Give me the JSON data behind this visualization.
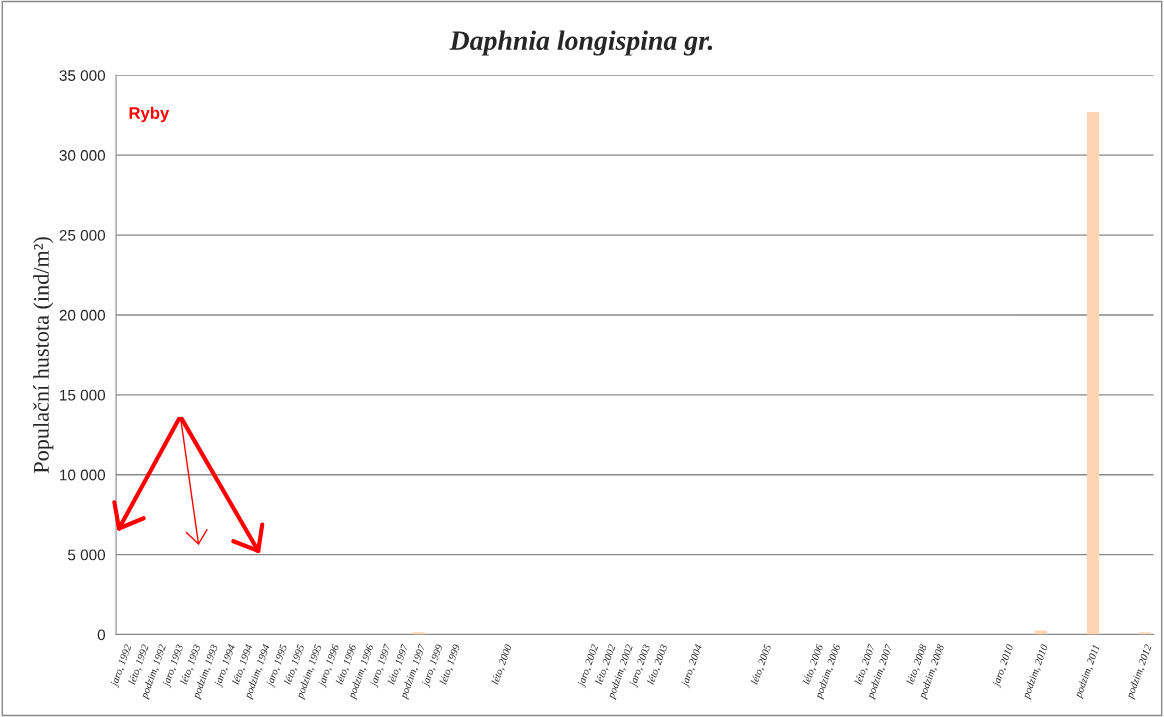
{
  "chart_data": {
    "type": "bar",
    "title": "Daphnia longispina gr.",
    "ylabel": "Populační hustota (ind/m²)",
    "categories": [
      "jaro, 1992",
      "léto, 1992",
      "podzim, 1992",
      "jaro, 1993",
      "léto, 1993",
      "podzim, 1993",
      "jaro, 1994",
      "léto, 1994",
      "podzim, 1994",
      "jaro, 1995",
      "léto, 1995",
      "podzim, 1995",
      "jaro, 1996",
      "léto, 1996",
      "podzim, 1996",
      "jaro, 1997",
      "léto, 1997",
      "podzim, 1997",
      "jaro, 1999",
      "léto, 1999",
      null,
      null,
      "léto, 2000",
      null,
      null,
      null,
      null,
      "jaro, 2002",
      "léto, 2002",
      "podzim, 2002",
      "jaro, 2003",
      "léto, 2003",
      null,
      "jaro, 2004",
      null,
      null,
      null,
      "léto, 2005",
      null,
      null,
      "léto, 2006",
      "podzim, 2006",
      null,
      "léto, 2007",
      "podzim, 2007",
      null,
      "léto, 2008",
      "podzim, 2008",
      null,
      null,
      null,
      "jaro, 2010",
      null,
      "podzim, 2010",
      null,
      null,
      "podzim, 2011",
      null,
      null,
      "podzim, 2012"
    ],
    "values": [
      0,
      0,
      0,
      0,
      0,
      0,
      0,
      0,
      0,
      0,
      0,
      0,
      0,
      0,
      0,
      0,
      0,
      150,
      0,
      0,
      0,
      0,
      0,
      0,
      0,
      0,
      0,
      0,
      0,
      0,
      0,
      0,
      0,
      0,
      0,
      0,
      0,
      0,
      0,
      0,
      0,
      0,
      0,
      0,
      0,
      0,
      0,
      0,
      0,
      0,
      0,
      0,
      0,
      250,
      0,
      0,
      32700,
      0,
      0,
      150
    ],
    "color": "#fcd5b5",
    "ylim": [
      0,
      35000
    ],
    "yticks": [
      {
        "value": 0,
        "label": "0"
      },
      {
        "value": 5000,
        "label": "5 000"
      },
      {
        "value": 10000,
        "label": "10 000"
      },
      {
        "value": 15000,
        "label": "15 000"
      },
      {
        "value": 20000,
        "label": "20 000"
      },
      {
        "value": 25000,
        "label": "25 000"
      },
      {
        "value": 30000,
        "label": "30 000"
      },
      {
        "value": 35000,
        "label": "35 000"
      }
    ],
    "grid": "y",
    "annotations": [
      "Ryby"
    ]
  }
}
